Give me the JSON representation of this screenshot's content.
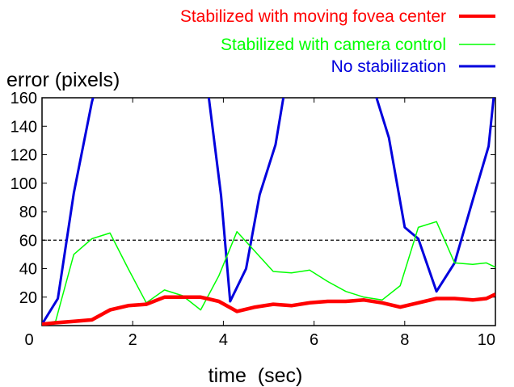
{
  "chart_data": {
    "type": "line",
    "ylabel": "error (pixels)",
    "xlabel": "time  (sec)",
    "xlim": [
      0,
      10
    ],
    "ylim": [
      0,
      160
    ],
    "xticks": [
      "0",
      "2",
      "4",
      "6",
      "8",
      "10"
    ],
    "yticks": [
      "20",
      "40",
      "60",
      "80",
      "100",
      "120",
      "140",
      "160"
    ],
    "xtick_values": [
      0,
      2,
      4,
      6,
      8,
      10
    ],
    "ytick_values": [
      20,
      40,
      60,
      80,
      100,
      120,
      140,
      160
    ],
    "legend_position": "top-right",
    "reference_line": {
      "y": 60,
      "style": "dashed",
      "color": "#000000"
    },
    "series": [
      {
        "name": "Stabilized with moving fovea center",
        "color": "#ff0000",
        "width": "thick",
        "x": [
          0,
          0.3,
          0.7,
          1.1,
          1.5,
          1.9,
          2.3,
          2.7,
          3.1,
          3.5,
          3.9,
          4.3,
          4.7,
          5.1,
          5.5,
          5.9,
          6.3,
          6.7,
          7.1,
          7.5,
          7.9,
          8.3,
          8.7,
          9.1,
          9.5,
          9.8,
          10
        ],
        "y": [
          1,
          2,
          3,
          4,
          11,
          14,
          15,
          20,
          20,
          20,
          17,
          10,
          13,
          15,
          14,
          16,
          17,
          17,
          18,
          16,
          13,
          16,
          19,
          19,
          18,
          19,
          22
        ]
      },
      {
        "name": "Stabilized with camera control",
        "color": "#00ff00",
        "width": "thin",
        "x": [
          0,
          0.3,
          0.7,
          1.1,
          1.5,
          1.9,
          2.3,
          2.7,
          3.1,
          3.5,
          3.9,
          4.3,
          4.7,
          5.1,
          5.5,
          5.9,
          6.3,
          6.7,
          7.1,
          7.5,
          7.9,
          8.3,
          8.7,
          9.1,
          9.5,
          9.8,
          10
        ],
        "y": [
          1,
          3,
          50,
          61,
          65,
          40,
          16,
          25,
          21,
          11,
          35,
          66,
          52,
          38,
          37,
          39,
          31,
          24,
          20,
          18,
          28,
          69,
          73,
          44,
          43,
          44,
          41
        ]
      },
      {
        "name": "No stabilization",
        "color": "#0000dd",
        "width": "thick",
        "x": [
          0,
          0.35,
          0.7,
          1.1,
          1.3,
          3.6,
          3.95,
          4.15,
          4.5,
          4.8,
          5.15,
          5.35,
          7.3,
          7.65,
          8.0,
          8.3,
          8.7,
          9.1,
          9.5,
          9.85,
          10
        ],
        "y": [
          1,
          19,
          93,
          157,
          180,
          180,
          91,
          17,
          40,
          92,
          127,
          165,
          168,
          132,
          69,
          61,
          24,
          44,
          88,
          126,
          172
        ]
      }
    ]
  }
}
